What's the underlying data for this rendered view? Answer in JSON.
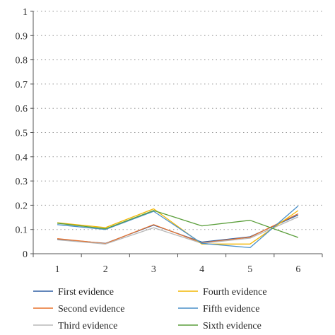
{
  "chart_data": {
    "type": "line",
    "title": "",
    "xlabel": "",
    "ylabel": "",
    "categories": [
      "1",
      "2",
      "3",
      "4",
      "5",
      "6"
    ],
    "ylim": [
      0,
      1
    ],
    "yticks": [
      "0",
      "0.1",
      "0.2",
      "0.3",
      "0.4",
      "0.5",
      "0.6",
      "0.7",
      "0.8",
      "0.9",
      "1"
    ],
    "grid": "horizontal dotted",
    "legend_position": "bottom",
    "series": [
      {
        "name": "First evidence",
        "color": "#2e5fa3",
        "values": [
          0.06,
          0.043,
          0.118,
          0.048,
          0.07,
          0.16
        ]
      },
      {
        "name": "Second evidence",
        "color": "#e8722c",
        "values": [
          0.062,
          0.042,
          0.12,
          0.045,
          0.068,
          0.165
        ]
      },
      {
        "name": "Third evidence",
        "color": "#b8b8b8",
        "values": [
          0.057,
          0.04,
          0.107,
          0.043,
          0.064,
          0.152
        ]
      },
      {
        "name": "Fourth evidence",
        "color": "#f2b705",
        "values": [
          0.128,
          0.108,
          0.185,
          0.04,
          0.04,
          0.178
        ]
      },
      {
        "name": "Fifth evidence",
        "color": "#4a90c9",
        "values": [
          0.12,
          0.1,
          0.175,
          0.043,
          0.025,
          0.197
        ]
      },
      {
        "name": "Sixth evidence",
        "color": "#5a9e3a",
        "values": [
          0.126,
          0.103,
          0.178,
          0.115,
          0.138,
          0.067
        ]
      }
    ]
  }
}
